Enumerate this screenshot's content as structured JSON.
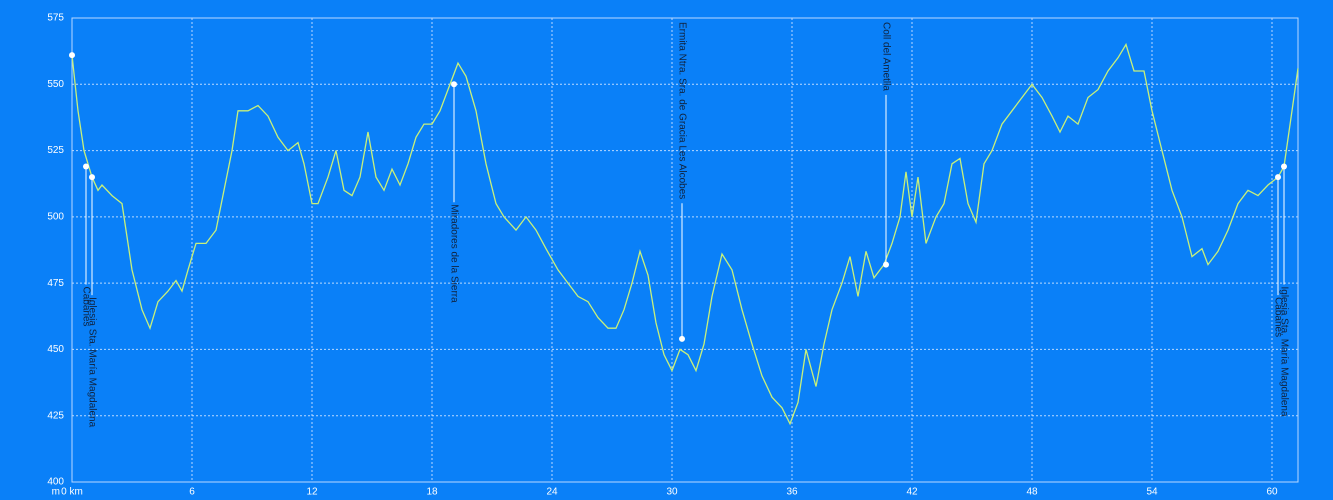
{
  "chart_data": {
    "type": "line",
    "ylabel": "m",
    "xlim": [
      0,
      61.3
    ],
    "ylim": [
      400,
      575
    ],
    "xticks": [
      {
        "value": 0,
        "label": "0 km"
      },
      6,
      12,
      18,
      24,
      30,
      36,
      42,
      48,
      54,
      60
    ],
    "yticks": [
      400,
      425,
      450,
      475,
      500,
      525,
      550,
      575
    ],
    "grid": true,
    "x": [
      0,
      0.3,
      0.6,
      1.0,
      1.3,
      1.5,
      2.0,
      2.5,
      3.0,
      3.5,
      3.9,
      4.3,
      4.8,
      5.2,
      5.5,
      5.8,
      6.2,
      6.7,
      7.2,
      7.6,
      8.0,
      8.3,
      8.8,
      9.3,
      9.8,
      10.3,
      10.8,
      11.3,
      11.6,
      12.0,
      12.3,
      12.8,
      13.2,
      13.6,
      14.0,
      14.4,
      14.8,
      15.2,
      15.6,
      16.0,
      16.4,
      16.8,
      17.2,
      17.6,
      18.0,
      18.4,
      18.8,
      19.3,
      19.7,
      20.2,
      20.7,
      21.2,
      21.6,
      22.2,
      22.7,
      23.2,
      23.7,
      24.3,
      24.8,
      25.3,
      25.8,
      26.3,
      26.8,
      27.2,
      27.6,
      28.0,
      28.4,
      28.8,
      29.2,
      29.6,
      30.0,
      30.4,
      30.8,
      31.2,
      31.6,
      32.0,
      32.5,
      33.0,
      33.5,
      34.0,
      34.5,
      35.0,
      35.5,
      35.9,
      36.3,
      36.7,
      37.2,
      37.6,
      38.0,
      38.5,
      38.9,
      39.3,
      39.7,
      40.1,
      40.6,
      41.0,
      41.4,
      41.7,
      42.0,
      42.3,
      42.7,
      43.2,
      43.6,
      44.0,
      44.4,
      44.8,
      45.2,
      45.6,
      46.0,
      46.5,
      47.0,
      47.5,
      48.0,
      48.5,
      49.0,
      49.4,
      49.8,
      50.3,
      50.8,
      51.3,
      51.8,
      52.3,
      52.7,
      53.1,
      53.6,
      54.0,
      54.5,
      55.0,
      55.5,
      56.0,
      56.5,
      56.8,
      57.3,
      57.8,
      58.3,
      58.8,
      59.3,
      59.8,
      60.3,
      60.6,
      61.0,
      61.3
    ],
    "series": [
      {
        "color": "#c8f07a",
        "values": [
          561,
          540,
          525,
          515,
          510,
          512,
          508,
          505,
          480,
          465,
          458,
          468,
          472,
          476,
          472,
          480,
          490,
          490,
          495,
          510,
          525,
          540,
          540,
          542,
          538,
          530,
          525,
          528,
          520,
          505,
          505,
          515,
          525,
          510,
          508,
          515,
          532,
          515,
          510,
          518,
          512,
          520,
          530,
          535,
          535,
          540,
          548,
          558,
          553,
          540,
          520,
          505,
          500,
          495,
          500,
          495,
          488,
          480,
          475,
          470,
          468,
          462,
          458,
          458,
          465,
          475,
          487,
          478,
          460,
          448,
          442,
          450,
          448,
          442,
          452,
          470,
          486,
          480,
          465,
          452,
          440,
          432,
          428,
          422,
          430,
          450,
          436,
          452,
          465,
          475,
          485,
          470,
          487,
          477,
          482,
          490,
          500,
          517,
          500,
          515,
          490,
          500,
          505,
          520,
          522,
          505,
          498,
          520,
          525,
          535,
          540,
          545,
          550,
          545,
          538,
          532,
          538,
          535,
          545,
          548,
          555,
          560,
          565,
          555,
          555,
          540,
          525,
          510,
          500,
          485,
          488,
          482,
          487,
          495,
          505,
          510,
          508,
          512,
          515,
          519,
          540,
          556
        ]
      }
    ],
    "annotations": [
      {
        "x": 0,
        "y": 561
      },
      {
        "x": 0.7,
        "y": 519,
        "label": "Cabanes"
      },
      {
        "x": 1.0,
        "y": 515,
        "label": "Iglesia Sta. María Magdalena"
      },
      {
        "x": 19.1,
        "y": 550,
        "label": "Miradores de la Sierra"
      },
      {
        "x": 30.5,
        "y": 454,
        "label": "Ermita Ntra. Sra. de Gracia Les Alcobes"
      },
      {
        "x": 40.7,
        "y": 482,
        "label": "Coll del Ametlla"
      },
      {
        "x": 60.3,
        "y": 515,
        "label": "Cabanes"
      },
      {
        "x": 60.6,
        "y": 519,
        "label": "Iglesia Sta. María Magdalena"
      }
    ]
  }
}
